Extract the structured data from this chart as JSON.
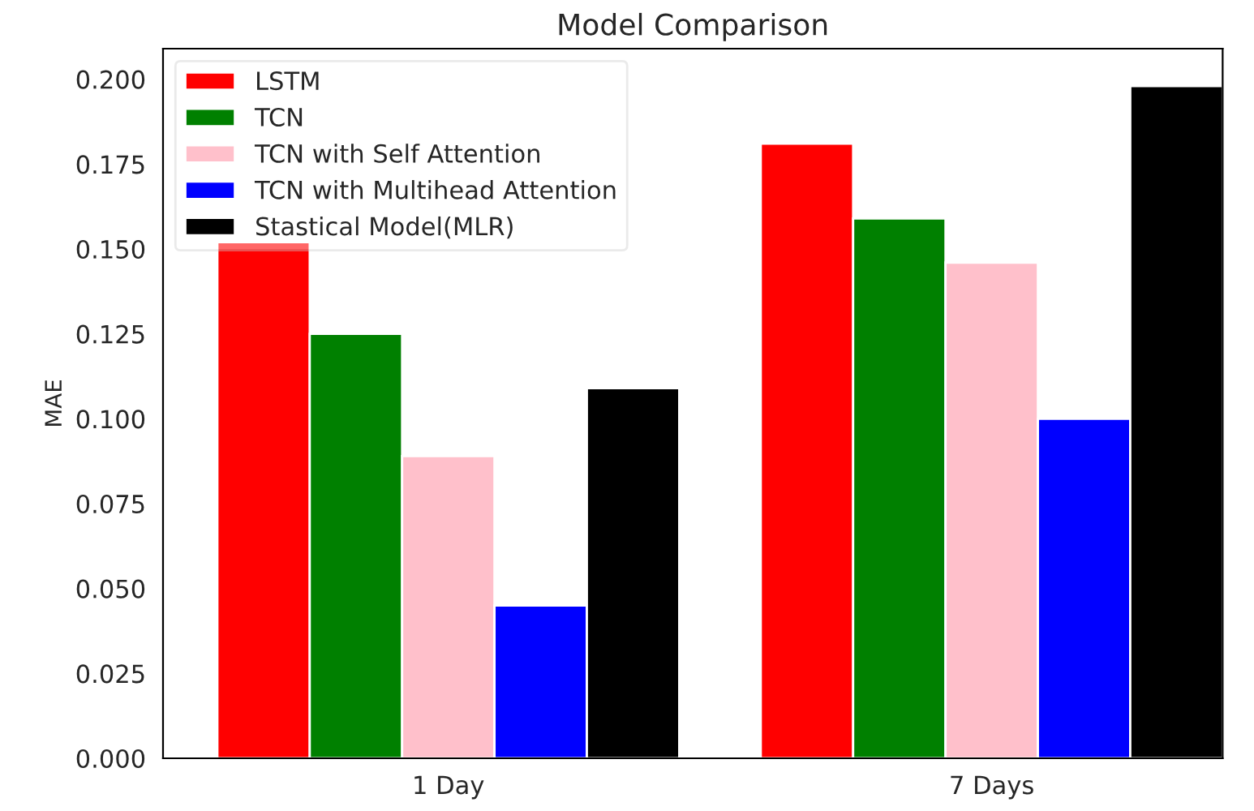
{
  "chart_data": {
    "type": "bar",
    "title": "Model Comparison",
    "ylabel": "MAE",
    "categories": [
      "1 Day",
      "7 Days"
    ],
    "series": [
      {
        "name": "LSTM",
        "color": "#ff0000",
        "values": [
          0.152,
          0.181
        ]
      },
      {
        "name": "TCN",
        "color": "#008000",
        "values": [
          0.125,
          0.159
        ]
      },
      {
        "name": "TCN with Self Attention",
        "color": "#ffc0cb",
        "values": [
          0.089,
          0.146
        ]
      },
      {
        "name": "TCN with Multihead Attention",
        "color": "#0000ff",
        "values": [
          0.045,
          0.1
        ]
      },
      {
        "name": "Stastical Model(MLR)",
        "color": "#000000",
        "values": [
          0.109,
          0.198
        ]
      }
    ],
    "ylim": [
      0,
      0.209
    ],
    "yticks": [
      {
        "value": 0,
        "label": "0.000"
      },
      {
        "value": 0.025,
        "label": "0.025"
      },
      {
        "value": 0.05,
        "label": "0.050"
      },
      {
        "value": 0.075,
        "label": "0.075"
      },
      {
        "value": 0.1,
        "label": "0.100"
      },
      {
        "value": 0.125,
        "label": "0.125"
      },
      {
        "value": 0.15,
        "label": "0.150"
      },
      {
        "value": 0.175,
        "label": "0.175"
      },
      {
        "value": 0.2,
        "label": "0.200"
      }
    ],
    "legend": "top left",
    "grid": false
  }
}
